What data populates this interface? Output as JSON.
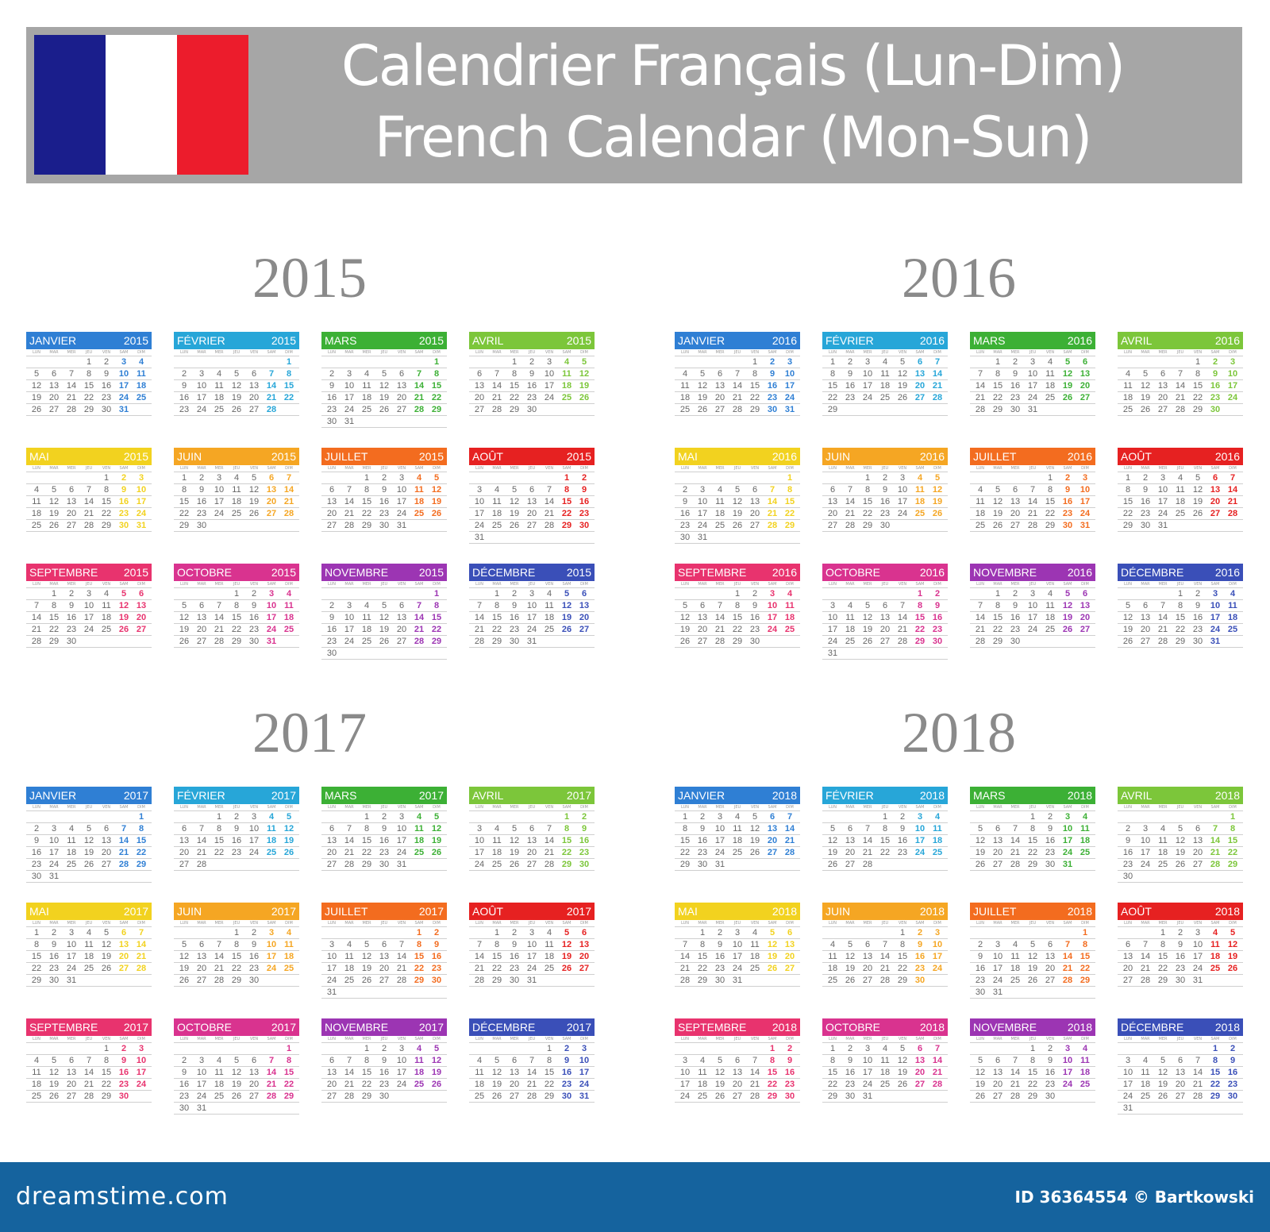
{
  "header": {
    "title_line1": "Calendrier Français (Lun-Dim)",
    "title_line2": "French Calendar (Mon-Sun)",
    "flag_colors": [
      "#1a1e8c",
      "#ffffff",
      "#ec1c2c"
    ]
  },
  "weekday_labels": [
    "LUN",
    "MAR",
    "MER",
    "JEU",
    "VEN",
    "SAM",
    "DIM"
  ],
  "months": [
    {
      "name": "JANVIER",
      "color": "#2f7fd4"
    },
    {
      "name": "FÉVRIER",
      "color": "#27a6d8"
    },
    {
      "name": "MARS",
      "color": "#3cb035"
    },
    {
      "name": "AVRIL",
      "color": "#7cc63a"
    },
    {
      "name": "MAI",
      "color": "#f2d21f"
    },
    {
      "name": "JUIN",
      "color": "#f5a623"
    },
    {
      "name": "JUILLET",
      "color": "#f36c1f"
    },
    {
      "name": "AOÛT",
      "color": "#e62121"
    },
    {
      "name": "SEPTEMBRE",
      "color": "#e8336e"
    },
    {
      "name": "OCTOBRE",
      "color": "#d9338f"
    },
    {
      "name": "NOVEMBRE",
      "color": "#9c35b3"
    },
    {
      "name": "DÉCEMBRE",
      "color": "#3a4fb8"
    }
  ],
  "years": [
    2015,
    2016,
    2017,
    2018
  ],
  "year_labels": [
    "2015",
    "2016",
    "2017",
    "2018"
  ],
  "footer": {
    "logo": "dreamstime.com",
    "credit": "ID 36364554 © Bartkowski"
  }
}
